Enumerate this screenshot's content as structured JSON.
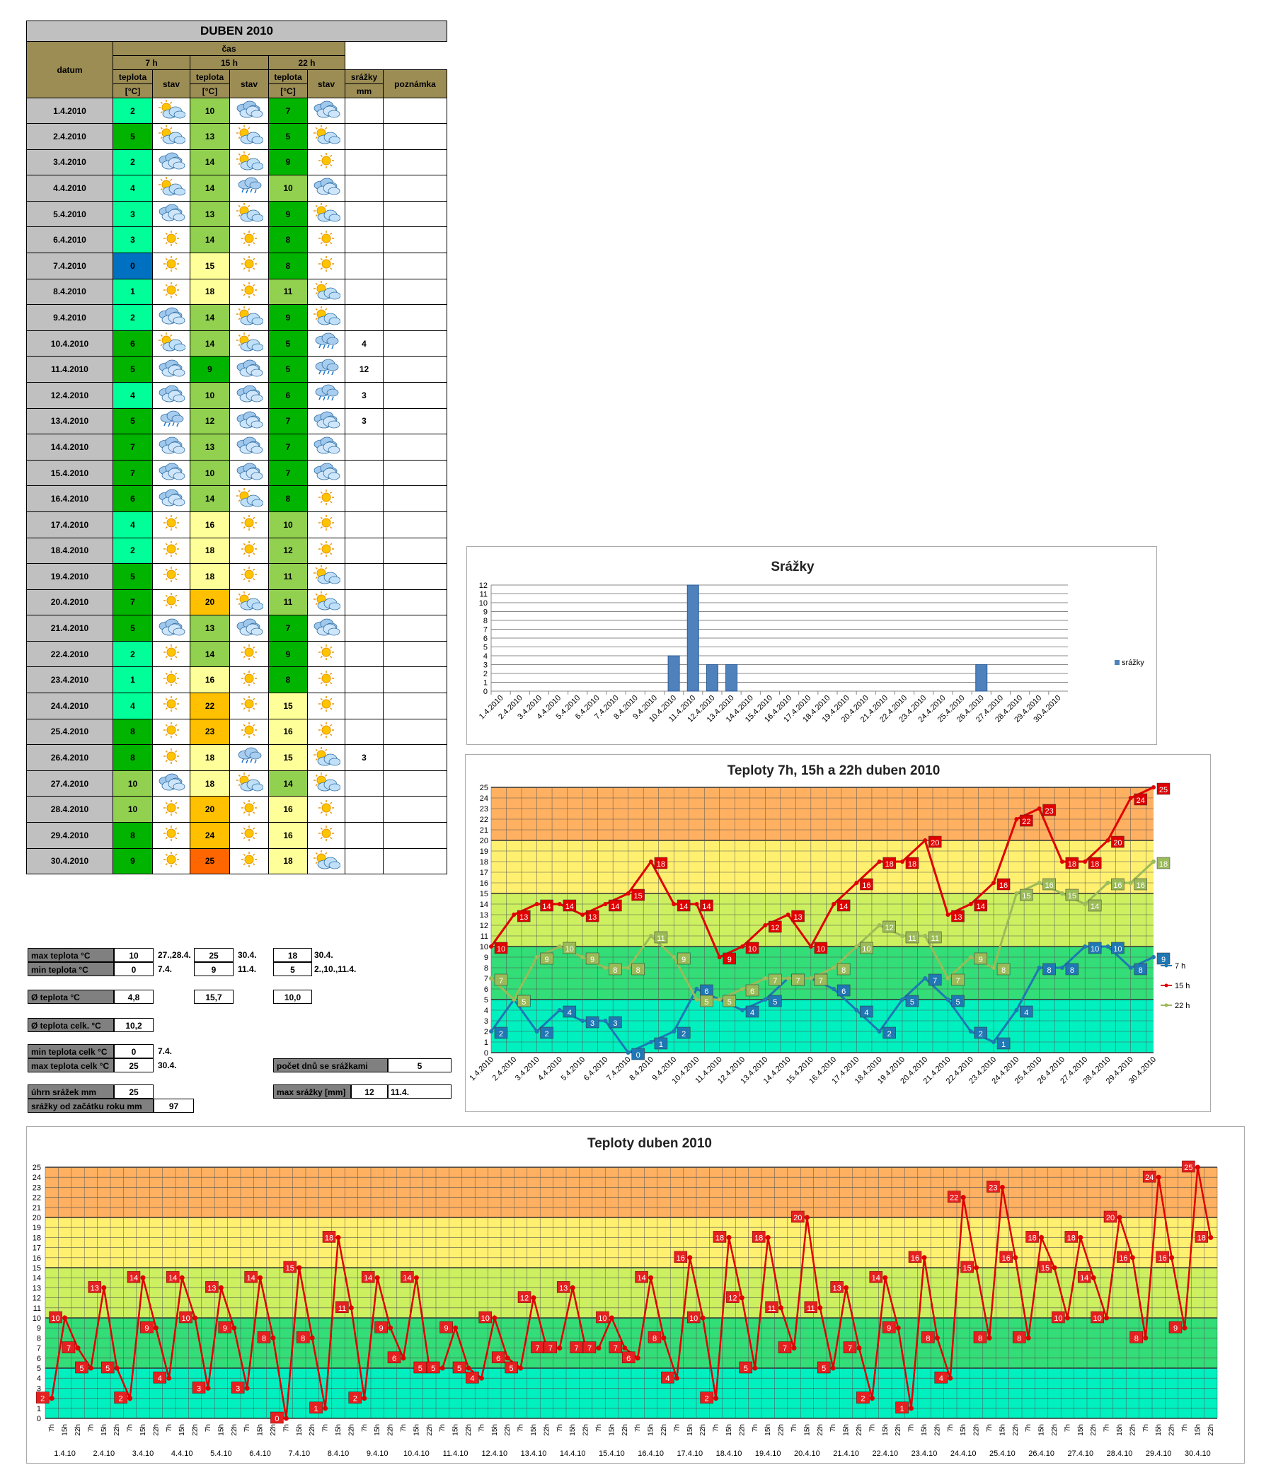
{
  "table": {
    "title": "DUBEN 2010",
    "col_datum": "datum",
    "col_cas": "čas",
    "times": [
      "7 h",
      "15 h",
      "22 h"
    ],
    "teplota_label": "teplota",
    "unit_label": "[°C]",
    "stav_label": "stav",
    "srazky_label": "srážky",
    "srazky_unit": "mm",
    "poznamka_label": "poznámka",
    "rows": [
      {
        "date": "1.4.2010",
        "t7": "2",
        "s7": "partly-cloudy-icon",
        "t15": "10",
        "s15": "cloudy-icon",
        "t22": "7",
        "s22": "cloudy-icon",
        "rain": ""
      },
      {
        "date": "2.4.2010",
        "t7": "5",
        "s7": "partly-cloudy-icon",
        "t15": "13",
        "s15": "partly-cloudy-icon",
        "t22": "5",
        "s22": "partly-cloudy-icon",
        "rain": ""
      },
      {
        "date": "3.4.2010",
        "t7": "2",
        "s7": "cloudy-icon",
        "t15": "14",
        "s15": "partly-cloudy-icon",
        "t22": "9",
        "s22": "sun-icon",
        "rain": ""
      },
      {
        "date": "4.4.2010",
        "t7": "4",
        "s7": "partly-cloudy-icon",
        "t15": "14",
        "s15": "rain-icon",
        "t22": "10",
        "s22": "cloudy-icon",
        "rain": ""
      },
      {
        "date": "5.4.2010",
        "t7": "3",
        "s7": "cloudy-icon",
        "t15": "13",
        "s15": "partly-cloudy-icon",
        "t22": "9",
        "s22": "partly-cloudy-icon",
        "rain": ""
      },
      {
        "date": "6.4.2010",
        "t7": "3",
        "s7": "sun-icon",
        "t15": "14",
        "s15": "sun-icon",
        "t22": "8",
        "s22": "sun-icon",
        "rain": ""
      },
      {
        "date": "7.4.2010",
        "t7": "0",
        "s7": "sun-icon",
        "t15": "15",
        "s15": "sun-icon",
        "t22": "8",
        "s22": "sun-icon",
        "rain": ""
      },
      {
        "date": "8.4.2010",
        "t7": "1",
        "s7": "sun-icon",
        "t15": "18",
        "s15": "sun-icon",
        "t22": "11",
        "s22": "partly-cloudy-icon",
        "rain": ""
      },
      {
        "date": "9.4.2010",
        "t7": "2",
        "s7": "cloudy-icon",
        "t15": "14",
        "s15": "partly-cloudy-icon",
        "t22": "9",
        "s22": "partly-cloudy-icon",
        "rain": ""
      },
      {
        "date": "10.4.2010",
        "t7": "6",
        "s7": "partly-cloudy-icon",
        "t15": "14",
        "s15": "partly-cloudy-icon",
        "t22": "5",
        "s22": "rain-icon",
        "rain": "4"
      },
      {
        "date": "11.4.2010",
        "t7": "5",
        "s7": "cloudy-icon",
        "t15": "9",
        "s15": "cloudy-icon",
        "t22": "5",
        "s22": "rain-icon",
        "rain": "12"
      },
      {
        "date": "12.4.2010",
        "t7": "4",
        "s7": "cloudy-icon",
        "t15": "10",
        "s15": "cloudy-icon",
        "t22": "6",
        "s22": "rain-icon",
        "rain": "3"
      },
      {
        "date": "13.4.2010",
        "t7": "5",
        "s7": "rain-icon",
        "t15": "12",
        "s15": "cloudy-icon",
        "t22": "7",
        "s22": "cloudy-icon",
        "rain": "3"
      },
      {
        "date": "14.4.2010",
        "t7": "7",
        "s7": "cloudy-icon",
        "t15": "13",
        "s15": "cloudy-icon",
        "t22": "7",
        "s22": "cloudy-icon",
        "rain": ""
      },
      {
        "date": "15.4.2010",
        "t7": "7",
        "s7": "cloudy-icon",
        "t15": "10",
        "s15": "cloudy-icon",
        "t22": "7",
        "s22": "cloudy-icon",
        "rain": ""
      },
      {
        "date": "16.4.2010",
        "t7": "6",
        "s7": "cloudy-icon",
        "t15": "14",
        "s15": "partly-cloudy-icon",
        "t22": "8",
        "s22": "sun-icon",
        "rain": ""
      },
      {
        "date": "17.4.2010",
        "t7": "4",
        "s7": "sun-icon",
        "t15": "16",
        "s15": "sun-icon",
        "t22": "10",
        "s22": "sun-icon",
        "rain": ""
      },
      {
        "date": "18.4.2010",
        "t7": "2",
        "s7": "sun-icon",
        "t15": "18",
        "s15": "sun-icon",
        "t22": "12",
        "s22": "sun-icon",
        "rain": ""
      },
      {
        "date": "19.4.2010",
        "t7": "5",
        "s7": "sun-icon",
        "t15": "18",
        "s15": "sun-icon",
        "t22": "11",
        "s22": "partly-cloudy-icon",
        "rain": ""
      },
      {
        "date": "20.4.2010",
        "t7": "7",
        "s7": "sun-icon",
        "t15": "20",
        "s15": "partly-cloudy-icon",
        "t22": "11",
        "s22": "partly-cloudy-icon",
        "rain": ""
      },
      {
        "date": "21.4.2010",
        "t7": "5",
        "s7": "cloudy-icon",
        "t15": "13",
        "s15": "cloudy-icon",
        "t22": "7",
        "s22": "cloudy-icon",
        "rain": ""
      },
      {
        "date": "22.4.2010",
        "t7": "2",
        "s7": "sun-icon",
        "t15": "14",
        "s15": "sun-icon",
        "t22": "9",
        "s22": "sun-icon",
        "rain": ""
      },
      {
        "date": "23.4.2010",
        "t7": "1",
        "s7": "sun-icon",
        "t15": "16",
        "s15": "sun-icon",
        "t22": "8",
        "s22": "sun-icon",
        "rain": ""
      },
      {
        "date": "24.4.2010",
        "t7": "4",
        "s7": "sun-icon",
        "t15": "22",
        "s15": "sun-icon",
        "t22": "15",
        "s22": "sun-icon",
        "rain": ""
      },
      {
        "date": "25.4.2010",
        "t7": "8",
        "s7": "sun-icon",
        "t15": "23",
        "s15": "sun-icon",
        "t22": "16",
        "s22": "sun-icon",
        "rain": ""
      },
      {
        "date": "26.4.2010",
        "t7": "8",
        "s7": "sun-icon",
        "t15": "18",
        "s15": "rain-icon",
        "t22": "15",
        "s22": "partly-cloudy-icon",
        "rain": "3"
      },
      {
        "date": "27.4.2010",
        "t7": "10",
        "s7": "cloudy-icon",
        "t15": "18",
        "s15": "partly-cloudy-icon",
        "t22": "14",
        "s22": "partly-cloudy-icon",
        "rain": ""
      },
      {
        "date": "28.4.2010",
        "t7": "10",
        "s7": "sun-icon",
        "t15": "20",
        "s15": "sun-icon",
        "t22": "16",
        "s22": "sun-icon",
        "rain": ""
      },
      {
        "date": "29.4.2010",
        "t7": "8",
        "s7": "sun-icon",
        "t15": "24",
        "s15": "sun-icon",
        "t22": "16",
        "s22": "sun-icon",
        "rain": ""
      },
      {
        "date": "30.4.2010",
        "t7": "9",
        "s7": "sun-icon",
        "t15": "25",
        "s15": "sun-icon",
        "t22": "18",
        "s22": "partly-cloudy-icon",
        "rain": ""
      }
    ]
  },
  "stats": {
    "max_label": "max teplota °C",
    "max7": "10",
    "max7_when": "27.,28.4.",
    "max15": "25",
    "max15_when": "30.4.",
    "max22": "18",
    "max22_when": "30.4.",
    "min_label": "min teplota °C",
    "min7": "0",
    "min7_when": "7.4.",
    "min15": "9",
    "min15_when": "11.4.",
    "min22": "5",
    "min22_when": "2.,10.,11.4.",
    "avg_label": "Ø teplota °C",
    "avg7": "4,8",
    "avg15": "15,7",
    "avg22": "10,0",
    "avg_total_label": "Ø teplota celk. °C",
    "avg_total": "10,2",
    "min_total_label": "min teplota celk °C",
    "min_total": "0",
    "min_total_when": "7.4.",
    "max_total_label": "max teplota celk °C",
    "max_total": "25",
    "max_total_when": "30.4.",
    "rain_days_label": "počet dnů se srážkami",
    "rain_days": "5",
    "rain_sum_label": "úhrn srážek  mm",
    "rain_sum": "25",
    "rain_max_label": "max srážky [mm]",
    "rain_max": "12",
    "rain_max_when": "11.4.",
    "rain_year_label": "srážky od začátku roku mm",
    "rain_year": "97"
  },
  "colors": {
    "header": "#9c8d55",
    "date_bg": "#c0c0c0",
    "temp_blue": "#0070c0",
    "temp_teal": "#00ff99",
    "temp_green": "#00b400",
    "temp_lightgreen": "#92d050",
    "temp_yellow": "#ffff99",
    "temp_orange": "#ffc000",
    "temp_darkorange": "#ff6600",
    "series7": "#1f77b4",
    "series15": "#e00000",
    "series22": "#9bbb59",
    "bar": "#4f81bd"
  },
  "chart_data": [
    {
      "type": "bar",
      "title": "Srážky",
      "categories": [
        "1.4.2010",
        "2.4.2010",
        "3.4.2010",
        "4.4.2010",
        "5.4.2010",
        "6.4.2010",
        "7.4.2010",
        "8.4.2010",
        "9.4.2010",
        "10.4.2010",
        "11.4.2010",
        "12.4.2010",
        "13.4.2010",
        "14.4.2010",
        "15.4.2010",
        "16.4.2010",
        "17.4.2010",
        "18.4.2010",
        "19.4.2010",
        "20.4.2010",
        "21.4.2010",
        "22.4.2010",
        "23.4.2010",
        "24.4.2010",
        "25.4.2010",
        "26.4.2010",
        "27.4.2010",
        "28.4.2010",
        "29.4.2010",
        "30.4.2010"
      ],
      "series": [
        {
          "name": "srážky",
          "values": [
            0,
            0,
            0,
            0,
            0,
            0,
            0,
            0,
            0,
            4,
            12,
            3,
            3,
            0,
            0,
            0,
            0,
            0,
            0,
            0,
            0,
            0,
            0,
            0,
            0,
            3,
            0,
            0,
            0,
            0
          ]
        }
      ],
      "ylim": [
        0,
        12
      ],
      "yticks": [
        0,
        1,
        2,
        3,
        4,
        5,
        6,
        7,
        8,
        9,
        10,
        11,
        12
      ],
      "legend": "right"
    },
    {
      "type": "line",
      "title": "Teploty 7h, 15h a 22h duben 2010",
      "categories": [
        "1.4.2010",
        "2.4.2010",
        "3.4.2010",
        "4.4.2010",
        "5.4.2010",
        "6.4.2010",
        "7.4.2010",
        "8.4.2010",
        "9.4.2010",
        "10.4.2010",
        "11.4.2010",
        "12.4.2010",
        "13.4.2010",
        "14.4.2010",
        "15.4.2010",
        "16.4.2010",
        "17.4.2010",
        "18.4.2010",
        "19.4.2010",
        "20.4.2010",
        "21.4.2010",
        "22.4.2010",
        "23.4.2010",
        "24.4.2010",
        "25.4.2010",
        "26.4.2010",
        "27.4.2010",
        "28.4.2010",
        "29.4.2010",
        "30.4.2010"
      ],
      "series": [
        {
          "name": "7 h",
          "values": [
            2,
            5,
            2,
            4,
            3,
            3,
            0,
            1,
            2,
            6,
            5,
            4,
            5,
            7,
            7,
            6,
            4,
            2,
            5,
            7,
            5,
            2,
            1,
            4,
            8,
            8,
            10,
            10,
            8,
            9
          ]
        },
        {
          "name": "15 h",
          "values": [
            10,
            13,
            14,
            14,
            13,
            14,
            15,
            18,
            14,
            14,
            9,
            10,
            12,
            13,
            10,
            14,
            16,
            18,
            18,
            20,
            13,
            14,
            16,
            22,
            23,
            18,
            18,
            20,
            24,
            25
          ]
        },
        {
          "name": "22 h",
          "values": [
            7,
            5,
            9,
            10,
            9,
            8,
            8,
            11,
            9,
            5,
            5,
            6,
            7,
            7,
            7,
            8,
            10,
            12,
            11,
            11,
            7,
            9,
            8,
            15,
            16,
            15,
            14,
            16,
            16,
            18
          ]
        }
      ],
      "ylim": [
        0,
        25
      ],
      "legend": "right"
    },
    {
      "type": "line",
      "title": "Teploty duben 2010",
      "sub_labels": [
        "7h",
        "15h",
        "22h"
      ],
      "day_labels": [
        "1.4.10",
        "2.4.10",
        "3.4.10",
        "4.4.10",
        "5.4.10",
        "6.4.10",
        "7.4.10",
        "8.4.10",
        "9.4.10",
        "10.4.10",
        "11.4.10",
        "12.4.10",
        "13.4.10",
        "14.4.10",
        "15.4.10",
        "16.4.10",
        "17.4.10",
        "18.4.10",
        "19.4.10",
        "20.4.10",
        "21.4.10",
        "22.4.10",
        "23.4.10",
        "24.4.10",
        "25.4.10",
        "26.4.10",
        "27.4.10",
        "28.4.10",
        "29.4.10",
        "30.4.10"
      ],
      "series": [
        {
          "values": [
            2,
            10,
            7,
            5,
            13,
            5,
            2,
            14,
            9,
            4,
            14,
            10,
            3,
            13,
            9,
            3,
            14,
            8,
            0,
            15,
            8,
            1,
            18,
            11,
            2,
            14,
            9,
            6,
            14,
            5,
            5,
            9,
            5,
            4,
            10,
            6,
            5,
            12,
            7,
            7,
            13,
            7,
            7,
            10,
            7,
            6,
            14,
            8,
            4,
            16,
            10,
            2,
            18,
            12,
            5,
            18,
            11,
            7,
            20,
            11,
            5,
            13,
            7,
            2,
            14,
            9,
            1,
            16,
            8,
            4,
            22,
            15,
            8,
            23,
            16,
            8,
            18,
            15,
            10,
            18,
            14,
            10,
            20,
            16,
            8,
            24,
            16,
            9,
            25,
            18
          ]
        }
      ],
      "ylim": [
        0,
        25
      ],
      "yticks": [
        0,
        1,
        2,
        3,
        4,
        5,
        6,
        7,
        8,
        9,
        10,
        11,
        12,
        13,
        14,
        15,
        16,
        17,
        18,
        19,
        20,
        21,
        22,
        23,
        24,
        25
      ]
    }
  ]
}
